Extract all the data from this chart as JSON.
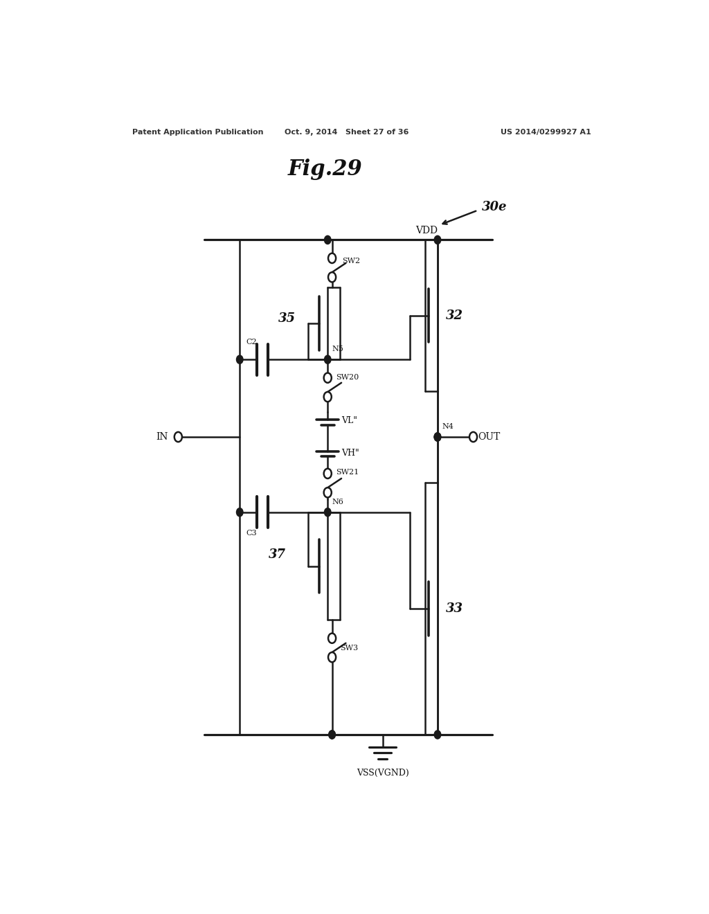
{
  "background_color": "#ffffff",
  "text_color": "#111111",
  "line_color": "#1a1a1a",
  "header_left": "Patent Application Publication",
  "header_mid": "Oct. 9, 2014   Sheet 27 of 36",
  "header_right": "US 2014/0299927 A1",
  "fig_title": "Fig.29",
  "label_30e": "30e",
  "label_VDD": "VDD",
  "label_VSS": "VSS(VGND)",
  "label_IN": "IN",
  "label_OUT": "OUT",
  "label_N4": "N4",
  "label_N5": "N5",
  "label_N6": "N6",
  "label_C2": "C2",
  "label_C3": "C3",
  "label_SW2": "SW2",
  "label_SW3": "SW3",
  "label_SW20": "SW20",
  "label_SW21": "SW21",
  "label_VL": "VL\"",
  "label_VH": "VH\"",
  "label_35": "35",
  "label_37": "37",
  "label_32": "32",
  "label_33": "33"
}
